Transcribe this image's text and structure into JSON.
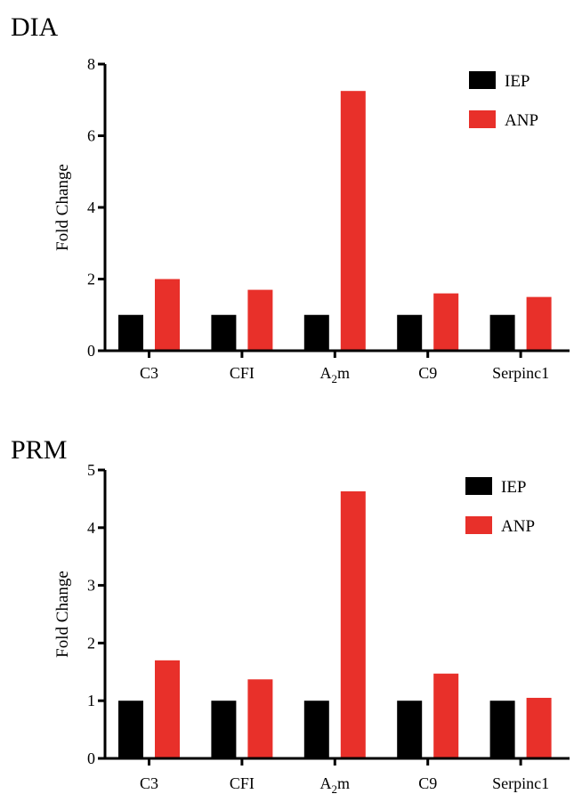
{
  "chart_data": [
    {
      "type": "bar",
      "title": "DIA",
      "ylabel": "Fold Change",
      "xlabel": "",
      "ylim": [
        0,
        8
      ],
      "yticks": [
        0,
        2,
        4,
        6,
        8
      ],
      "legend_position": "top-right",
      "categories": [
        {
          "text": "C3"
        },
        {
          "text": "CFI"
        },
        {
          "text": "A",
          "sub": "2",
          "tail": "m"
        },
        {
          "text": "C9"
        },
        {
          "text": "Serpinc1"
        }
      ],
      "series": [
        {
          "name": "IEP",
          "color": "#000000",
          "values": [
            1.0,
            1.0,
            1.0,
            1.0,
            1.0
          ]
        },
        {
          "name": "ANP",
          "color": "#e8302a",
          "values": [
            2.0,
            1.7,
            7.25,
            1.6,
            1.5
          ]
        }
      ]
    },
    {
      "type": "bar",
      "title": "PRM",
      "ylabel": "Fold Change",
      "xlabel": "",
      "ylim": [
        0,
        5
      ],
      "yticks": [
        0,
        1,
        2,
        3,
        4,
        5
      ],
      "legend_position": "top-right",
      "categories": [
        {
          "text": "C3"
        },
        {
          "text": "CFI"
        },
        {
          "text": "A",
          "sub": "2",
          "tail": "m"
        },
        {
          "text": "C9"
        },
        {
          "text": "Serpinc1"
        }
      ],
      "series": [
        {
          "name": "IEP",
          "color": "#000000",
          "values": [
            1.0,
            1.0,
            1.0,
            1.0,
            1.0
          ]
        },
        {
          "name": "ANP",
          "color": "#e8302a",
          "values": [
            1.7,
            1.37,
            4.63,
            1.47,
            1.05
          ]
        }
      ]
    }
  ]
}
